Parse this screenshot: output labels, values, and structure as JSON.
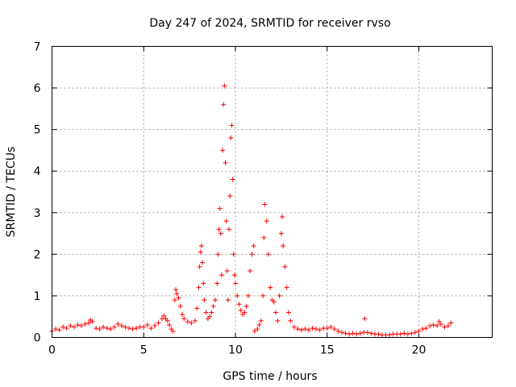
{
  "chart_data": {
    "type": "scatter",
    "title": "Day 247 of 2024, SRMTID for receiver rvso",
    "xlabel": "GPS time / hours",
    "ylabel": "SRMTID / TECUs",
    "xlim": [
      0,
      24
    ],
    "ylim": [
      0,
      7
    ],
    "xticks": [
      0,
      5,
      10,
      15,
      20
    ],
    "yticks": [
      0,
      1,
      2,
      3,
      4,
      5,
      6,
      7
    ],
    "grid": true,
    "marker": "+",
    "color": "#ff0000",
    "series": [
      {
        "name": "SRMTID",
        "points": [
          [
            0.0,
            0.15
          ],
          [
            0.2,
            0.2
          ],
          [
            0.4,
            0.18
          ],
          [
            0.6,
            0.25
          ],
          [
            0.8,
            0.22
          ],
          [
            1.0,
            0.28
          ],
          [
            1.2,
            0.25
          ],
          [
            1.4,
            0.3
          ],
          [
            1.6,
            0.28
          ],
          [
            1.8,
            0.32
          ],
          [
            2.0,
            0.35
          ],
          [
            2.1,
            0.42
          ],
          [
            2.2,
            0.38
          ],
          [
            2.4,
            0.22
          ],
          [
            2.6,
            0.2
          ],
          [
            2.8,
            0.25
          ],
          [
            3.0,
            0.22
          ],
          [
            3.2,
            0.2
          ],
          [
            3.4,
            0.25
          ],
          [
            3.6,
            0.32
          ],
          [
            3.8,
            0.28
          ],
          [
            4.0,
            0.25
          ],
          [
            4.2,
            0.22
          ],
          [
            4.4,
            0.2
          ],
          [
            4.6,
            0.22
          ],
          [
            4.8,
            0.25
          ],
          [
            5.0,
            0.25
          ],
          [
            5.2,
            0.3
          ],
          [
            5.4,
            0.22
          ],
          [
            5.6,
            0.28
          ],
          [
            5.8,
            0.35
          ],
          [
            6.0,
            0.45
          ],
          [
            6.1,
            0.52
          ],
          [
            6.2,
            0.45
          ],
          [
            6.3,
            0.4
          ],
          [
            6.4,
            0.3
          ],
          [
            6.5,
            0.2
          ],
          [
            6.6,
            0.15
          ],
          [
            6.7,
            0.9
          ],
          [
            6.75,
            1.15
          ],
          [
            6.8,
            1.05
          ],
          [
            6.9,
            0.95
          ],
          [
            7.0,
            0.75
          ],
          [
            7.1,
            0.55
          ],
          [
            7.2,
            0.45
          ],
          [
            7.4,
            0.38
          ],
          [
            7.6,
            0.35
          ],
          [
            7.8,
            0.4
          ],
          [
            7.9,
            0.7
          ],
          [
            8.0,
            1.2
          ],
          [
            8.05,
            1.7
          ],
          [
            8.1,
            2.05
          ],
          [
            8.15,
            2.2
          ],
          [
            8.2,
            1.8
          ],
          [
            8.25,
            1.3
          ],
          [
            8.3,
            0.9
          ],
          [
            8.4,
            0.6
          ],
          [
            8.5,
            0.45
          ],
          [
            8.6,
            0.5
          ],
          [
            8.7,
            0.6
          ],
          [
            8.8,
            0.75
          ],
          [
            8.9,
            0.9
          ],
          [
            9.0,
            1.3
          ],
          [
            9.05,
            2.0
          ],
          [
            9.1,
            2.6
          ],
          [
            9.15,
            3.1
          ],
          [
            9.2,
            2.5
          ],
          [
            9.25,
            1.5
          ],
          [
            9.3,
            4.5
          ],
          [
            9.35,
            5.6
          ],
          [
            9.4,
            6.05
          ],
          [
            9.45,
            4.2
          ],
          [
            9.5,
            2.8
          ],
          [
            9.55,
            1.6
          ],
          [
            9.6,
            0.9
          ],
          [
            9.65,
            2.6
          ],
          [
            9.7,
            3.4
          ],
          [
            9.75,
            4.8
          ],
          [
            9.8,
            5.1
          ],
          [
            9.85,
            3.8
          ],
          [
            9.9,
            2.0
          ],
          [
            9.95,
            1.5
          ],
          [
            10.0,
            1.3
          ],
          [
            10.1,
            1.0
          ],
          [
            10.2,
            0.8
          ],
          [
            10.3,
            0.65
          ],
          [
            10.4,
            0.55
          ],
          [
            10.5,
            0.6
          ],
          [
            10.6,
            0.75
          ],
          [
            10.7,
            1.0
          ],
          [
            10.8,
            1.6
          ],
          [
            10.9,
            2.0
          ],
          [
            11.0,
            2.2
          ],
          [
            11.05,
            0.15
          ],
          [
            11.2,
            0.2
          ],
          [
            11.3,
            0.3
          ],
          [
            11.4,
            0.4
          ],
          [
            11.5,
            1.0
          ],
          [
            11.55,
            2.4
          ],
          [
            11.6,
            3.2
          ],
          [
            11.7,
            2.8
          ],
          [
            11.8,
            2.0
          ],
          [
            11.9,
            1.2
          ],
          [
            12.0,
            0.9
          ],
          [
            12.1,
            0.85
          ],
          [
            12.2,
            0.6
          ],
          [
            12.3,
            0.4
          ],
          [
            12.4,
            1.0
          ],
          [
            12.5,
            2.5
          ],
          [
            12.55,
            2.9
          ],
          [
            12.6,
            2.2
          ],
          [
            12.7,
            1.7
          ],
          [
            12.8,
            1.2
          ],
          [
            12.9,
            0.6
          ],
          [
            13.0,
            0.4
          ],
          [
            13.2,
            0.25
          ],
          [
            13.4,
            0.2
          ],
          [
            13.6,
            0.18
          ],
          [
            13.8,
            0.2
          ],
          [
            14.0,
            0.18
          ],
          [
            14.2,
            0.22
          ],
          [
            14.4,
            0.2
          ],
          [
            14.6,
            0.18
          ],
          [
            14.8,
            0.22
          ],
          [
            15.0,
            0.22
          ],
          [
            15.2,
            0.25
          ],
          [
            15.4,
            0.2
          ],
          [
            15.6,
            0.15
          ],
          [
            15.8,
            0.12
          ],
          [
            16.0,
            0.1
          ],
          [
            16.2,
            0.08
          ],
          [
            16.4,
            0.1
          ],
          [
            16.6,
            0.08
          ],
          [
            16.8,
            0.1
          ],
          [
            17.0,
            0.12
          ],
          [
            17.05,
            0.45
          ],
          [
            17.2,
            0.12
          ],
          [
            17.4,
            0.1
          ],
          [
            17.6,
            0.08
          ],
          [
            17.8,
            0.08
          ],
          [
            18.0,
            0.06
          ],
          [
            18.2,
            0.06
          ],
          [
            18.4,
            0.06
          ],
          [
            18.6,
            0.08
          ],
          [
            18.8,
            0.08
          ],
          [
            19.0,
            0.08
          ],
          [
            19.2,
            0.1
          ],
          [
            19.4,
            0.08
          ],
          [
            19.6,
            0.1
          ],
          [
            19.8,
            0.12
          ],
          [
            20.0,
            0.15
          ],
          [
            20.2,
            0.2
          ],
          [
            20.4,
            0.22
          ],
          [
            20.6,
            0.28
          ],
          [
            20.8,
            0.3
          ],
          [
            21.0,
            0.28
          ],
          [
            21.1,
            0.38
          ],
          [
            21.2,
            0.32
          ],
          [
            21.4,
            0.25
          ],
          [
            21.6,
            0.28
          ],
          [
            21.75,
            0.35
          ]
        ]
      }
    ]
  }
}
